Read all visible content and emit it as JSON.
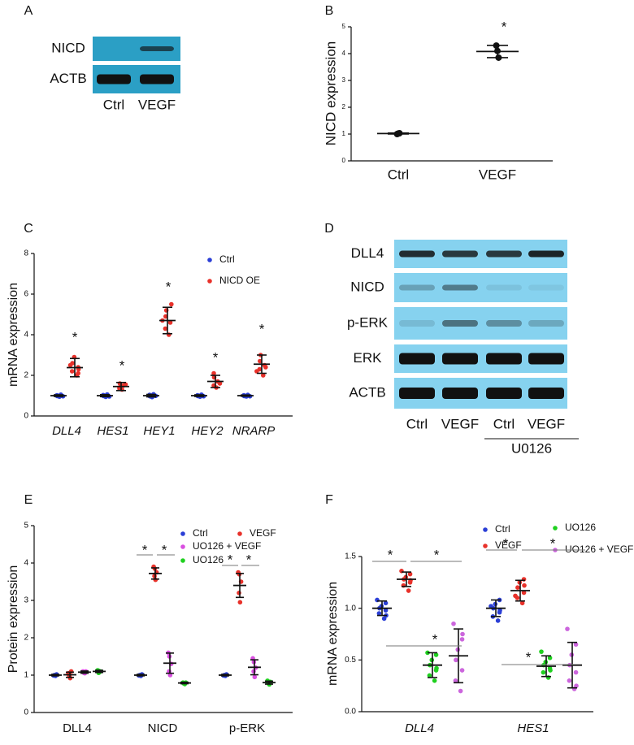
{
  "chart_data": [
    {
      "panel": "B",
      "type": "dot",
      "ylabel": "NICD expression",
      "categories": [
        "Ctrl",
        "VEGF"
      ],
      "series": [
        {
          "color": "#111111",
          "points": [
            [
              1.0,
              1.02,
              1.03
            ],
            [
              4.3,
              4.1,
              3.85
            ]
          ],
          "means": [
            1.02,
            4.08
          ],
          "sds": [
            0.02,
            0.23
          ]
        }
      ],
      "ylim": [
        0,
        5
      ],
      "yticks": [
        0,
        1,
        2,
        3,
        4,
        5
      ],
      "annotations": [
        "*"
      ]
    },
    {
      "panel": "C",
      "type": "dot",
      "ylabel": "mRNA expression",
      "italic_categories": true,
      "categories": [
        "DLL4",
        "HES1",
        "HEY1",
        "HEY2",
        "NRARP"
      ],
      "series": [
        {
          "name": "Ctrl",
          "color": "#2b3fd6",
          "points": [
            [
              0.95,
              1.0,
              1.05,
              0.98,
              1.02,
              0.97
            ],
            [
              0.94,
              1.0,
              1.06,
              0.98,
              1.03,
              0.96
            ],
            [
              0.93,
              1.0,
              1.07,
              0.97,
              1.04,
              0.99
            ],
            [
              0.95,
              1.0,
              1.05,
              0.98,
              1.02,
              0.97
            ],
            [
              0.96,
              1.0,
              1.04,
              0.98,
              1.02,
              0.97
            ]
          ],
          "means": [
            1.0,
            1.0,
            1.0,
            1.0,
            1.0
          ],
          "sds": [
            0.04,
            0.05,
            0.06,
            0.04,
            0.03
          ]
        },
        {
          "name": "NICD OE",
          "color": "#e8312a",
          "points": [
            [
              2.0,
              2.2,
              2.4,
              2.6,
              2.9,
              2.1,
              2.5,
              2.3
            ],
            [
              1.3,
              1.4,
              1.5,
              1.6,
              1.35,
              1.55
            ],
            [
              4.0,
              4.3,
              4.6,
              4.9,
              5.2,
              5.5,
              4.7
            ],
            [
              1.4,
              1.5,
              1.7,
              1.9,
              2.1,
              1.6
            ],
            [
              2.0,
              2.3,
              2.5,
              2.7,
              3.0,
              2.4,
              2.2
            ]
          ],
          "means": [
            2.38,
            1.45,
            4.7,
            1.7,
            2.55
          ],
          "sds": [
            0.45,
            0.2,
            0.65,
            0.3,
            0.45
          ]
        }
      ],
      "ylim": [
        0,
        8
      ],
      "yticks": [
        0,
        2,
        4,
        6,
        8
      ],
      "annotations": [
        "*",
        "*",
        "*",
        "*",
        "*"
      ]
    },
    {
      "panel": "E",
      "type": "dot",
      "ylabel": "Protein expression",
      "categories": [
        "DLL4",
        "NICD",
        "p-ERK"
      ],
      "series": [
        {
          "name": "Ctrl",
          "color": "#2b3fd6",
          "points": [
            [
              0.98,
              1.0,
              1.02,
              1.0,
              0.99
            ],
            [
              0.98,
              1.0,
              1.02,
              1.0,
              0.99
            ],
            [
              0.98,
              1.0,
              1.02,
              1.0,
              0.99
            ]
          ],
          "means": [
            1.0,
            1.0,
            1.0
          ],
          "sds": [
            0.02,
            0.02,
            0.02
          ]
        },
        {
          "name": "VEGF",
          "color": "#e8312a",
          "points": [
            [
              0.92,
              1.0,
              1.1,
              0.97,
              1.05
            ],
            [
              3.55,
              3.65,
              3.75,
              3.85,
              3.9
            ],
            [
              2.95,
              3.2,
              3.5,
              3.7,
              3.75
            ]
          ],
          "means": [
            1.01,
            3.72,
            3.4
          ],
          "sds": [
            0.07,
            0.15,
            0.32
          ]
        },
        {
          "name": "UO126 + VEGF",
          "color": "#d94fe0",
          "points": [
            [
              1.05,
              1.08,
              1.1,
              1.06,
              1.1
            ],
            [
              1.0,
              1.1,
              1.3,
              1.5,
              1.6
            ],
            [
              0.95,
              1.1,
              1.2,
              1.35,
              1.45
            ]
          ],
          "means": [
            1.08,
            1.32,
            1.21
          ],
          "sds": [
            0.03,
            0.27,
            0.2
          ]
        },
        {
          "name": "UO126",
          "color": "#1fd01f",
          "points": [
            [
              1.08,
              1.12,
              1.1,
              1.06,
              1.13
            ],
            [
              0.76,
              0.78,
              0.8,
              0.79,
              0.8
            ],
            [
              0.75,
              0.8,
              0.82,
              0.78,
              0.85
            ]
          ],
          "means": [
            1.1,
            0.79,
            0.8
          ],
          "sds": [
            0.03,
            0.02,
            0.04
          ]
        }
      ],
      "ylim": [
        0,
        5
      ],
      "yticks": [
        0,
        1,
        2,
        3,
        4,
        5
      ],
      "annotations": [
        "*",
        "*",
        "*",
        "*"
      ]
    },
    {
      "panel": "F",
      "type": "dot",
      "ylabel": "mRNA expression",
      "italic_categories": true,
      "categories": [
        "DLL4",
        "HES1"
      ],
      "series": [
        {
          "name": "Ctrl",
          "color": "#2b3fd6",
          "points": [
            [
              0.9,
              0.95,
              0.98,
              1.0,
              1.02,
              1.05,
              1.08,
              0.93
            ],
            [
              0.88,
              0.92,
              0.96,
              1.0,
              1.04,
              1.08,
              1.02,
              0.98
            ]
          ],
          "means": [
            1.0,
            1.0
          ],
          "sds": [
            0.07,
            0.08
          ]
        },
        {
          "name": "VEGF",
          "color": "#e8312a",
          "points": [
            [
              1.17,
              1.22,
              1.25,
              1.28,
              1.3,
              1.33,
              1.36,
              1.27
            ],
            [
              1.05,
              1.1,
              1.15,
              1.2,
              1.25,
              1.28,
              1.12,
              1.22
            ]
          ],
          "means": [
            1.28,
            1.17
          ],
          "sds": [
            0.07,
            0.1
          ]
        },
        {
          "name": "UO126",
          "color": "#1fd01f",
          "points": [
            [
              0.3,
              0.35,
              0.4,
              0.45,
              0.5,
              0.55,
              0.57,
              0.42
            ],
            [
              0.33,
              0.38,
              0.42,
              0.45,
              0.48,
              0.52,
              0.58,
              0.4
            ]
          ],
          "means": [
            0.45,
            0.44
          ],
          "sds": [
            0.12,
            0.1
          ]
        },
        {
          "name": "UO126 + VEGF",
          "color": "#cc66dd",
          "points": [
            [
              0.2,
              0.3,
              0.4,
              0.5,
              0.6,
              0.7,
              0.85,
              0.75
            ],
            [
              0.22,
              0.3,
              0.38,
              0.45,
              0.55,
              0.65,
              0.8,
              0.25
            ]
          ],
          "means": [
            0.54,
            0.45
          ],
          "sds": [
            0.26,
            0.22
          ]
        }
      ],
      "ylim": [
        0,
        1.5
      ],
      "yticks": [
        {
          "value": 0,
          "label": "0.0"
        },
        {
          "value": 0.5,
          "label": "0.5"
        },
        {
          "value": 1,
          "label": "1.0"
        },
        {
          "value": 1.5,
          "label": "1.5"
        }
      ],
      "annotations": [
        "*",
        "*",
        "*",
        "*",
        "*",
        "*"
      ]
    }
  ],
  "blots": [
    {
      "panel": "A",
      "rows": [
        "NICD",
        "ACTB"
      ],
      "lanes": [
        "Ctrl",
        "VEGF"
      ]
    },
    {
      "panel": "D",
      "rows": [
        "DLL4",
        "NICD",
        "p-ERK",
        "ERK",
        "ACTB"
      ],
      "lanes": [
        "Ctrl",
        "VEGF",
        "Ctrl",
        "VEGF"
      ],
      "group_label": "U0126"
    }
  ]
}
